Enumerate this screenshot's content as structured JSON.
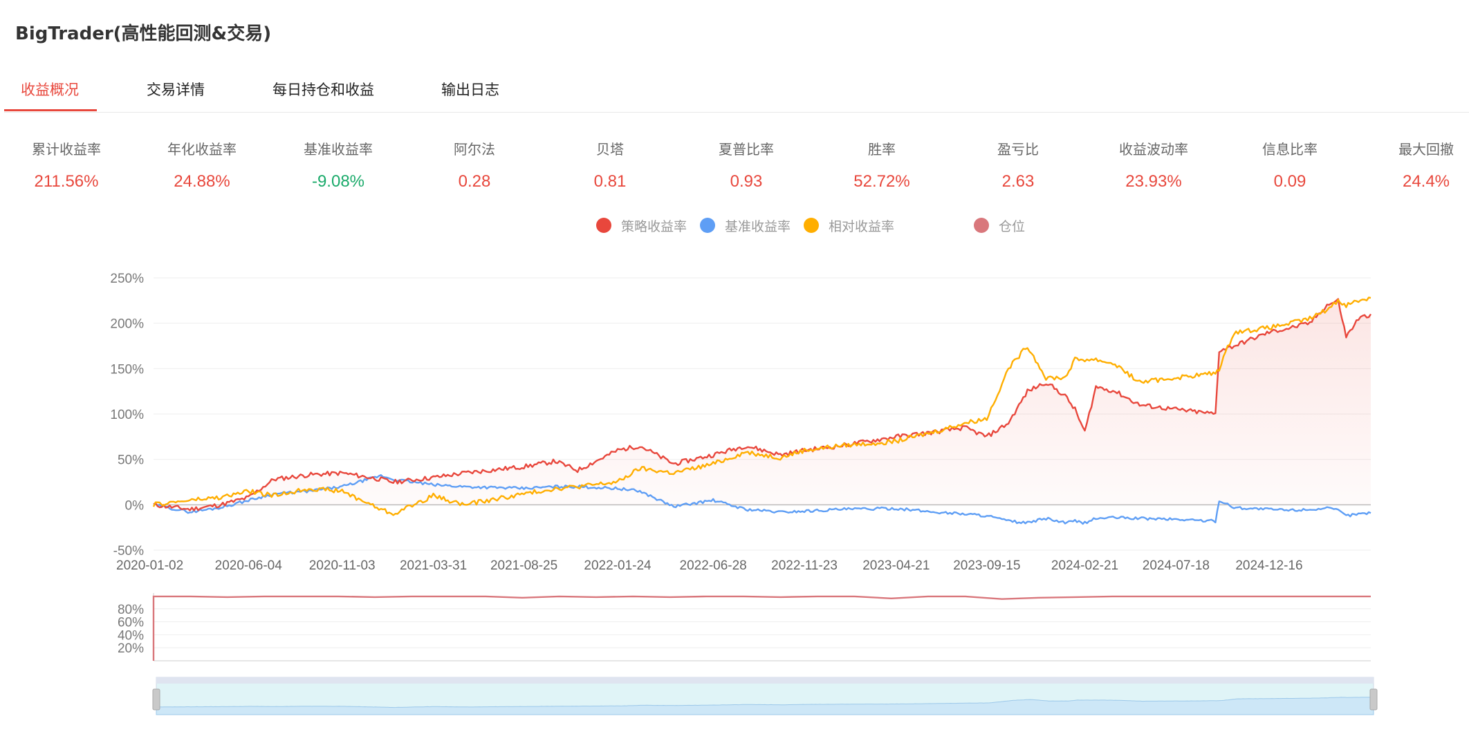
{
  "app": {
    "title": "BigTrader(高性能回测&交易)"
  },
  "tabs": [
    {
      "label": "收益概况",
      "active": true
    },
    {
      "label": "交易详情",
      "active": false
    },
    {
      "label": "每日持仓和收益",
      "active": false
    },
    {
      "label": "输出日志",
      "active": false
    }
  ],
  "metrics": [
    {
      "label": "累计收益率",
      "value": "211.56%",
      "color": "#e8473c"
    },
    {
      "label": "年化收益率",
      "value": "24.88%",
      "color": "#e8473c"
    },
    {
      "label": "基准收益率",
      "value": "-9.08%",
      "color": "#1aaa6a"
    },
    {
      "label": "阿尔法",
      "value": "0.28",
      "color": "#e8473c"
    },
    {
      "label": "贝塔",
      "value": "0.81",
      "color": "#e8473c"
    },
    {
      "label": "夏普比率",
      "value": "0.93",
      "color": "#e8473c"
    },
    {
      "label": "胜率",
      "value": "52.72%",
      "color": "#e8473c"
    },
    {
      "label": "盈亏比",
      "value": "2.63",
      "color": "#e8473c"
    },
    {
      "label": "收益波动率",
      "value": "23.93%",
      "color": "#e8473c"
    },
    {
      "label": "信息比率",
      "value": "0.09",
      "color": "#e8473c"
    },
    {
      "label": "最大回撤",
      "value": "24.4%",
      "color": "#e8473c"
    }
  ],
  "legend": [
    {
      "label": "策略收益率",
      "color": "#e8473c",
      "icon": "circle"
    },
    {
      "label": "基准收益率",
      "color": "#5e9ef5",
      "icon": "circle"
    },
    {
      "label": "相对收益率",
      "color": "#ffae00",
      "icon": "circle"
    },
    {
      "label": "仓位",
      "color": "#d9777c",
      "icon": "circle"
    }
  ],
  "chart_data": [
    {
      "type": "line",
      "title": "",
      "xlabel": "",
      "ylabel": "",
      "x_ticks": [
        "2020-01-02",
        "2020-06-04",
        "2020-11-03",
        "2021-03-31",
        "2021-08-25",
        "2022-01-24",
        "2022-06-28",
        "2022-11-23",
        "2023-04-21",
        "2023-09-15",
        "2024-02-21",
        "2024-07-18",
        "2024-12-16"
      ],
      "y_ticks": [
        "250%",
        "200%",
        "150%",
        "100%",
        "50%",
        "0%",
        "-50%"
      ],
      "ylim": [
        -50,
        250
      ],
      "x": [
        "2020-01-02",
        "2020-03-01",
        "2020-04-20",
        "2020-06-04",
        "2020-07-15",
        "2020-09-10",
        "2020-11-03",
        "2021-01-05",
        "2021-01-25",
        "2021-03-31",
        "2021-05-20",
        "2021-08-25",
        "2021-10-15",
        "2021-11-20",
        "2022-01-24",
        "2022-03-01",
        "2022-04-25",
        "2022-06-28",
        "2022-08-20",
        "2022-10-15",
        "2022-11-23",
        "2023-01-20",
        "2023-04-21",
        "2023-06-20",
        "2023-08-10",
        "2023-09-15",
        "2023-10-20",
        "2023-11-20",
        "2023-12-20",
        "2024-01-20",
        "2024-02-05",
        "2024-02-21",
        "2024-03-10",
        "2024-04-10",
        "2024-05-20",
        "2024-07-18",
        "2024-09-20",
        "2024-09-26",
        "2024-10-20",
        "2024-12-16",
        "2025-01-20",
        "2025-02-20",
        "2025-03-20",
        "2025-04-07",
        "2025-04-20",
        "2025-05-10",
        "2025-05-30"
      ],
      "series": [
        {
          "name": "策略收益率",
          "color": "#e8473c",
          "values": [
            0,
            -5,
            0,
            8,
            28,
            33,
            35,
            28,
            25,
            30,
            35,
            42,
            48,
            38,
            60,
            65,
            45,
            55,
            65,
            55,
            60,
            65,
            75,
            80,
            85,
            75,
            90,
            125,
            135,
            120,
            105,
            80,
            130,
            125,
            110,
            105,
            100,
            170,
            175,
            190,
            195,
            200,
            220,
            225,
            185,
            205,
            210
          ]
        },
        {
          "name": "基准收益率",
          "color": "#5e9ef5",
          "values": [
            0,
            -8,
            -3,
            5,
            12,
            15,
            20,
            32,
            28,
            22,
            20,
            18,
            20,
            20,
            18,
            15,
            -2,
            5,
            -5,
            -8,
            -7,
            -5,
            -4,
            -8,
            -10,
            -12,
            -18,
            -20,
            -15,
            -20,
            -18,
            -20,
            -15,
            -14,
            -15,
            -16,
            -18,
            5,
            -3,
            -5,
            -6,
            -5,
            -4,
            -6,
            -12,
            -10,
            -9
          ]
        },
        {
          "name": "相对收益率",
          "color": "#ffae00",
          "values": [
            0,
            5,
            8,
            15,
            10,
            18,
            15,
            -5,
            -10,
            10,
            0,
            12,
            18,
            20,
            25,
            40,
            35,
            45,
            58,
            52,
            60,
            65,
            70,
            80,
            90,
            95,
            150,
            175,
            140,
            140,
            160,
            160,
            160,
            155,
            135,
            140,
            145,
            150,
            190,
            195,
            200,
            205,
            215,
            225,
            220,
            225,
            228
          ]
        }
      ]
    },
    {
      "type": "line",
      "title": "",
      "xlabel": "",
      "ylabel": "",
      "y_ticks": [
        "80%",
        "60%",
        "40%",
        "20%"
      ],
      "ylim": [
        0,
        100
      ],
      "series": [
        {
          "name": "仓位",
          "color": "#d9777c",
          "values": [
            99,
            99,
            98,
            99,
            99,
            99,
            98,
            99,
            99,
            99,
            97,
            99,
            98,
            99,
            98,
            99,
            99,
            98,
            99,
            99,
            96,
            99,
            99,
            95,
            97,
            98,
            99,
            99,
            99,
            99,
            99,
            99,
            99,
            99
          ]
        }
      ]
    }
  ]
}
